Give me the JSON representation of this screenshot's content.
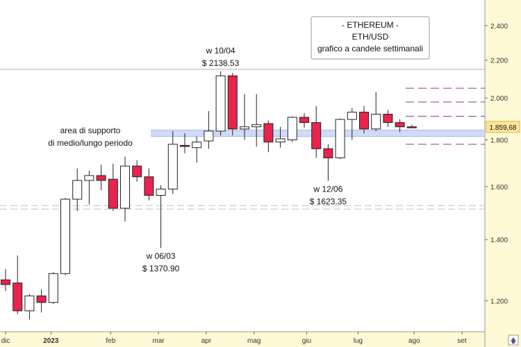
{
  "chart_data": {
    "type": "candlestick",
    "title": [
      "- ETHEREUM -",
      "ETH/USD",
      "grafico a candele settimanali"
    ],
    "y_axis": {
      "scale": "log",
      "ylim": [
        1110,
        2560
      ],
      "ticks": [
        {
          "value": 1200,
          "label": "1.200"
        },
        {
          "value": 1400,
          "label": "1.400"
        },
        {
          "value": 1600,
          "label": "1.600"
        },
        {
          "value": 1800,
          "label": "1.800"
        },
        {
          "value": 2000,
          "label": "2.000"
        },
        {
          "value": 2200,
          "label": "2.200"
        },
        {
          "value": 2400,
          "label": "2.400"
        }
      ],
      "side": "right"
    },
    "x_axis": {
      "ticks": [
        {
          "pos": 0,
          "label": "dic",
          "bold": false
        },
        {
          "pos": 3.8,
          "label": "2023",
          "bold": true
        },
        {
          "pos": 8.8,
          "label": "feb",
          "bold": false
        },
        {
          "pos": 12.8,
          "label": "mar",
          "bold": false
        },
        {
          "pos": 16.8,
          "label": "apr",
          "bold": false
        },
        {
          "pos": 20.8,
          "label": "mag",
          "bold": false
        },
        {
          "pos": 25.2,
          "label": "giu",
          "bold": false
        },
        {
          "pos": 29.5,
          "label": "lug",
          "bold": false
        },
        {
          "pos": 34.2,
          "label": "ago",
          "bold": false
        },
        {
          "pos": 38.2,
          "label": "set",
          "bold": false
        }
      ]
    },
    "candles": [
      {
        "o": 1265,
        "h": 1300,
        "l": 1230,
        "c": 1250
      },
      {
        "o": 1255,
        "h": 1345,
        "l": 1160,
        "c": 1170
      },
      {
        "o": 1170,
        "h": 1220,
        "l": 1145,
        "c": 1215
      },
      {
        "o": 1215,
        "h": 1235,
        "l": 1165,
        "c": 1195
      },
      {
        "o": 1195,
        "h": 1290,
        "l": 1190,
        "c": 1285
      },
      {
        "o": 1285,
        "h": 1555,
        "l": 1280,
        "c": 1550
      },
      {
        "o": 1550,
        "h": 1675,
        "l": 1505,
        "c": 1625
      },
      {
        "o": 1625,
        "h": 1665,
        "l": 1530,
        "c": 1645
      },
      {
        "o": 1645,
        "h": 1690,
        "l": 1585,
        "c": 1625
      },
      {
        "o": 1630,
        "h": 1695,
        "l": 1505,
        "c": 1515
      },
      {
        "o": 1515,
        "h": 1725,
        "l": 1465,
        "c": 1685
      },
      {
        "o": 1685,
        "h": 1710,
        "l": 1620,
        "c": 1640
      },
      {
        "o": 1640,
        "h": 1675,
        "l": 1545,
        "c": 1565
      },
      {
        "o": 1565,
        "h": 1605,
        "l": 1370.9,
        "c": 1590
      },
      {
        "o": 1590,
        "h": 1840,
        "l": 1570,
        "c": 1780
      },
      {
        "o": 1775,
        "h": 1830,
        "l": 1740,
        "c": 1770
      },
      {
        "o": 1765,
        "h": 1815,
        "l": 1700,
        "c": 1790
      },
      {
        "o": 1795,
        "h": 1935,
        "l": 1760,
        "c": 1840
      },
      {
        "o": 1840,
        "h": 2138.53,
        "l": 1820,
        "c": 2115
      },
      {
        "o": 2115,
        "h": 2130,
        "l": 1820,
        "c": 1850
      },
      {
        "o": 1850,
        "h": 2020,
        "l": 1800,
        "c": 1860
      },
      {
        "o": 1860,
        "h": 2020,
        "l": 1770,
        "c": 1870
      },
      {
        "o": 1875,
        "h": 1890,
        "l": 1745,
        "c": 1790
      },
      {
        "o": 1790,
        "h": 1860,
        "l": 1765,
        "c": 1805
      },
      {
        "o": 1800,
        "h": 1910,
        "l": 1790,
        "c": 1905
      },
      {
        "o": 1905,
        "h": 1925,
        "l": 1855,
        "c": 1880
      },
      {
        "o": 1880,
        "h": 1960,
        "l": 1720,
        "c": 1760
      },
      {
        "o": 1760,
        "h": 1780,
        "l": 1623.35,
        "c": 1720
      },
      {
        "o": 1720,
        "h": 1900,
        "l": 1715,
        "c": 1895
      },
      {
        "o": 1895,
        "h": 1950,
        "l": 1800,
        "c": 1930
      },
      {
        "o": 1930,
        "h": 1960,
        "l": 1830,
        "c": 1850
      },
      {
        "o": 1850,
        "h": 2030,
        "l": 1840,
        "c": 1920
      },
      {
        "o": 1920,
        "h": 1940,
        "l": 1860,
        "c": 1880
      },
      {
        "o": 1880,
        "h": 1895,
        "l": 1835,
        "c": 1860
      },
      {
        "o": 1860,
        "h": 1870,
        "l": 1855,
        "c": 1859.68
      }
    ],
    "last_price": {
      "value": 1859.68,
      "label": "1.859,68"
    },
    "support_zone": {
      "low": 1815,
      "high": 1845,
      "label": [
        "area di supporto",
        "di medio/lungo periodo"
      ]
    },
    "horizontal_lines": [
      {
        "value": 2150,
        "style": "solid"
      },
      {
        "value": 1512,
        "style": "dashed"
      },
      {
        "value": 1525,
        "style": "dashed"
      }
    ],
    "projection_lines": [
      2050,
      1980,
      1910,
      1780
    ],
    "annotations": [
      {
        "candle": 18,
        "lines": [
          "w 10/04",
          "$ 2138.53"
        ],
        "position": "above"
      },
      {
        "candle": 13,
        "lines": [
          "w 06/03",
          "$ 1370.90"
        ],
        "position": "below"
      },
      {
        "candle": 27,
        "lines": [
          "w 12/06",
          "$ 1623.35"
        ],
        "position": "below"
      }
    ],
    "colors": {
      "bull_body": "#ffffff",
      "bear_body": "#e8234d",
      "candle_outline": "#222222",
      "support_zone": "#c9d4f5",
      "projection": "#8a3a8a",
      "price_tag": "#ffe79a",
      "axis_panel": "#fff9d6"
    }
  }
}
